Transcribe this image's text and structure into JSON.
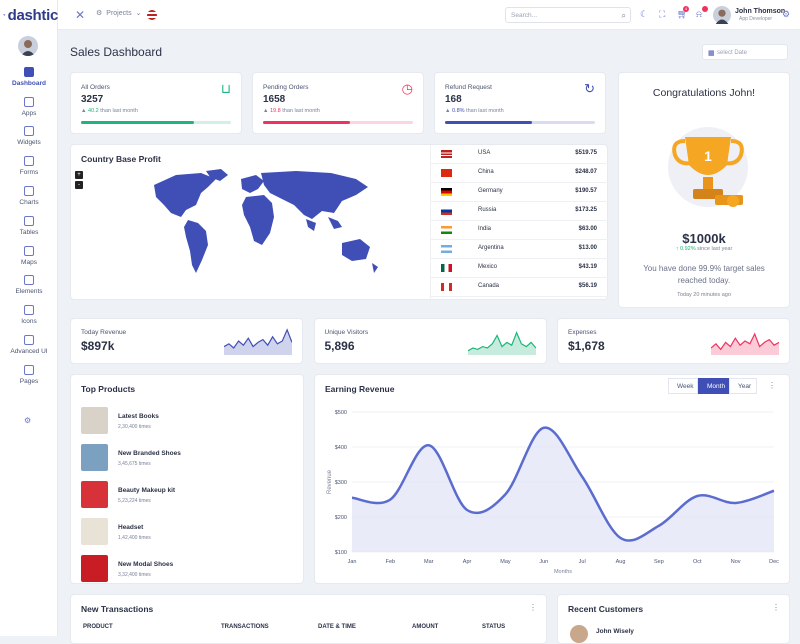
{
  "app": {
    "logo": "dashtic"
  },
  "sidebar": {
    "items": [
      {
        "label": "Dashboard",
        "icon": "home-icon"
      },
      {
        "label": "Apps",
        "icon": "apps-icon"
      },
      {
        "label": "Widgets",
        "icon": "widgets-icon"
      },
      {
        "label": "Forms",
        "icon": "forms-icon"
      },
      {
        "label": "Charts",
        "icon": "chart-icon"
      },
      {
        "label": "Tables",
        "icon": "table-icon"
      },
      {
        "label": "Maps",
        "icon": "map-pin-icon"
      },
      {
        "label": "Elements",
        "icon": "grid-icon"
      },
      {
        "label": "Icons",
        "icon": "drop-icon"
      },
      {
        "label": "Advanced UI",
        "icon": "layers-icon"
      },
      {
        "label": "Pages",
        "icon": "page-icon"
      }
    ]
  },
  "topbar": {
    "projects": "Projects",
    "search_placeholder": "Search...",
    "cart_badge": "4",
    "user_name": "John Thomson",
    "user_role": "App Developer"
  },
  "page": {
    "title": "Sales Dashboard",
    "date_placeholder": "select Date"
  },
  "stats": [
    {
      "label": "All Orders",
      "value": "3257",
      "change": "40.2",
      "suffix": "than last month",
      "color": "#1fb57a",
      "progress": 0.75
    },
    {
      "label": "Pending Orders",
      "value": "1658",
      "change": "19.8",
      "suffix": "than last month",
      "color": "#f0325f",
      "progress": 0.58
    },
    {
      "label": "Refund Request",
      "value": "168",
      "change": "0.8%",
      "suffix": "than last month",
      "color": "#3f4fb5",
      "progress": 0.58
    }
  ],
  "country_profit": {
    "title": "Country Base Profit",
    "zoom_in": "+",
    "zoom_out": "-",
    "rows": [
      {
        "country": "USA",
        "amount": "$519.75"
      },
      {
        "country": "China",
        "amount": "$248.07"
      },
      {
        "country": "Germany",
        "amount": "$190.57"
      },
      {
        "country": "Russia",
        "amount": "$173.25"
      },
      {
        "country": "India",
        "amount": "$63.00"
      },
      {
        "country": "Argentina",
        "amount": "$13.00"
      },
      {
        "country": "Mexico",
        "amount": "$43.19"
      },
      {
        "country": "Canada",
        "amount": "$56.19"
      }
    ]
  },
  "congrats": {
    "title": "Congratulations John!",
    "trophy_number": "1",
    "amount": "$1000k",
    "growth": "0.92%",
    "growth_suffix": "since last year",
    "message": "You have done 99.9% target sales reached today.",
    "time": "Today 20 minutes ago"
  },
  "sparks": [
    {
      "label": "Today Revenue",
      "value": "$897k",
      "color": "#3f4fb5"
    },
    {
      "label": "Unique Visitors",
      "value": "5,896",
      "color": "#1fb57a"
    },
    {
      "label": "Expenses",
      "value": "$1,678",
      "color": "#f0325f"
    }
  ],
  "top_products": {
    "title": "Top Products",
    "items": [
      {
        "name": "Latest Books",
        "sales": "2,30,400 times"
      },
      {
        "name": "New Branded Shoes",
        "sales": "3,45,675 times"
      },
      {
        "name": "Beauty Makeup kit",
        "sales": "5,23,224 times"
      },
      {
        "name": "Headset",
        "sales": "1,42,400 times"
      },
      {
        "name": "New Modal Shoes",
        "sales": "3,32,400 times"
      }
    ]
  },
  "earning": {
    "title": "Earning Revenue",
    "tabs": [
      "Week",
      "Month",
      "Year"
    ],
    "active_tab": "Month"
  },
  "chart_data": {
    "type": "area",
    "title": "Earning Revenue",
    "xlabel": "Months",
    "ylabel": "Revenue",
    "categories": [
      "Jan",
      "Feb",
      "Mar",
      "Apr",
      "May",
      "Jun",
      "Jul",
      "Aug",
      "Sep",
      "Oct",
      "Nov",
      "Dec"
    ],
    "yticks": [
      "$100",
      "$200",
      "$300",
      "$400",
      "$500"
    ],
    "ylim": [
      100,
      500
    ],
    "values": [
      255,
      250,
      405,
      220,
      265,
      455,
      315,
      140,
      175,
      260,
      240,
      275
    ],
    "color": "#5b6ccf"
  },
  "transactions": {
    "title": "New Transactions",
    "columns": [
      "PRODUCT",
      "TRANSACTIONS",
      "DATE & TIME",
      "AMOUNT",
      "STATUS"
    ]
  },
  "customers": {
    "title": "Recent Customers",
    "first": "John Wisely"
  }
}
